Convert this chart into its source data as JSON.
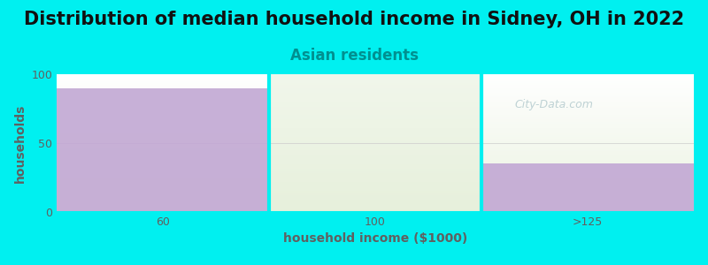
{
  "title": "Distribution of median household income in Sidney, OH in 2022",
  "subtitle": "Asian residents",
  "categories": [
    "60",
    "100",
    ">125"
  ],
  "values": [
    90,
    0,
    35
  ],
  "bar_color": "#c2a8d4",
  "light_bar_color": "#e4efd8",
  "xlabel": "household income ($1000)",
  "ylabel": "households",
  "ylim": [
    0,
    100
  ],
  "yticks": [
    0,
    50,
    100
  ],
  "background_color": "#00f0f0",
  "plot_bg_top": "#f0f8f0",
  "plot_bg_bottom": "#e8f4e8",
  "title_fontsize": 15,
  "subtitle_fontsize": 12,
  "axis_label_fontsize": 10,
  "tick_fontsize": 9,
  "subtitle_color": "#009090",
  "axis_label_color": "#606060",
  "tick_color": "#606060",
  "watermark": "City-Data.com",
  "watermark_color": "#b0c8cc"
}
